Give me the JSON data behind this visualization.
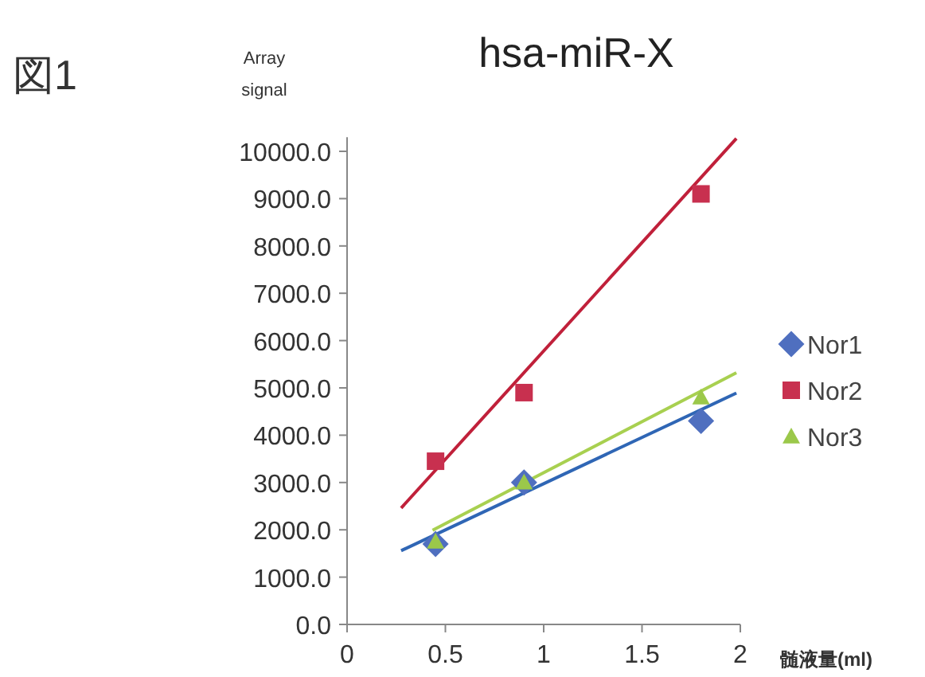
{
  "chart_data": {
    "type": "scatter",
    "title": "hsa-miR-X",
    "ylabel": "Array signal",
    "xlabel": "髄液量(ml)",
    "annotations": [
      "図1"
    ],
    "xlim": [
      0,
      2
    ],
    "xticks": [
      0,
      0.5,
      1,
      1.5,
      2
    ],
    "ylim": [
      0,
      10300
    ],
    "yticks": [
      {
        "value": 0,
        "label": "0.0"
      },
      {
        "value": 1000,
        "label": "1000.0"
      },
      {
        "value": 2000,
        "label": "2000.0"
      },
      {
        "value": 3000,
        "label": "3000.0"
      },
      {
        "value": 4000,
        "label": "4000.0"
      },
      {
        "value": 5000,
        "label": "5000.0"
      },
      {
        "value": 6000,
        "label": "6000.0"
      },
      {
        "value": 7000,
        "label": "7000.0"
      },
      {
        "value": 8000,
        "label": "8000.0"
      },
      {
        "value": 9000,
        "label": "9000.0"
      },
      {
        "value": 10000,
        "label": "10000.0"
      }
    ],
    "grid": false,
    "legend": "right",
    "series": [
      {
        "type": "line",
        "color": "#c0203a",
        "x": [
          0.275,
          1.98
        ],
        "values": [
          2460,
          10270
        ],
        "marker": "none"
      },
      {
        "type": "line",
        "color": "#2f66b5",
        "x": [
          0.275,
          1.98
        ],
        "values": [
          1560,
          4890
        ],
        "marker": "none"
      },
      {
        "type": "line",
        "color": "#a8d050",
        "x": [
          0.435,
          1.98
        ],
        "values": [
          1990,
          5320
        ],
        "marker": "none"
      },
      {
        "name": "Nor1",
        "color": "#4f6fbf",
        "marker": "diamond",
        "x": [
          0.45,
          0.9,
          1.8
        ],
        "values": [
          1700,
          3000,
          4300
        ]
      },
      {
        "name": "Nor2",
        "color": "#c8304f",
        "marker": "square",
        "x": [
          0.45,
          0.9,
          1.8
        ],
        "values": [
          3450,
          4900,
          9100
        ]
      },
      {
        "name": "Nor3",
        "color": "#9bc84a",
        "marker": "triangle",
        "x": [
          0.45,
          0.9,
          1.8
        ],
        "values": [
          1750,
          3000,
          4800
        ]
      }
    ]
  }
}
